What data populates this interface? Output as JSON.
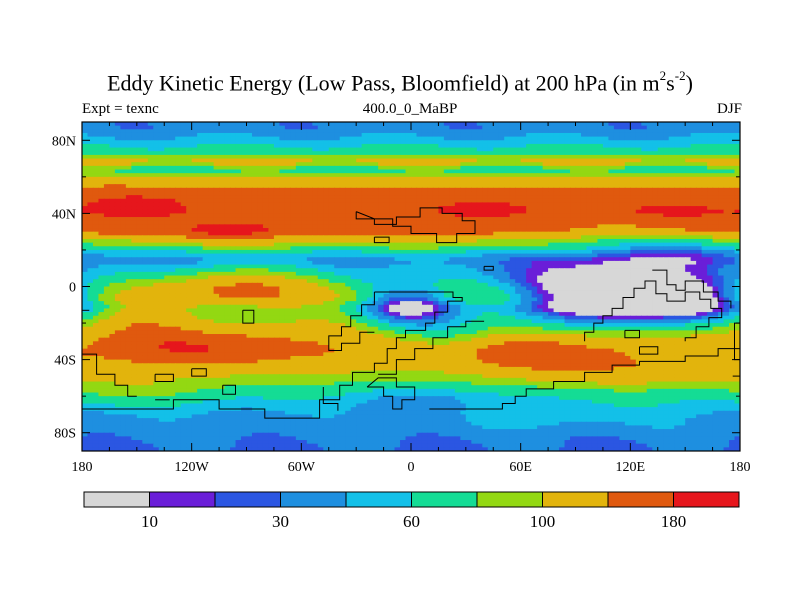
{
  "chart_data": {
    "type": "heatmap",
    "title": {
      "main": "Eddy Kinetic Energy (Low Pass, Bloomfield) at 200 hPa (in m",
      "unit_sq": "2",
      "unit_s": "s",
      "unit_exp": "-2",
      "close": ")"
    },
    "left_label": "Expt = texnc",
    "center_label": "400.0_0_MaBP",
    "right_label": "DJF",
    "x_range": [
      -180,
      180
    ],
    "y_range": [
      -90,
      90
    ],
    "x_ticks": [
      {
        "value": -180,
        "label": "180"
      },
      {
        "value": -120,
        "label": "120W"
      },
      {
        "value": -60,
        "label": "60W"
      },
      {
        "value": 0,
        "label": "0"
      },
      {
        "value": 60,
        "label": "60E"
      },
      {
        "value": 120,
        "label": "120E"
      },
      {
        "value": 180,
        "label": "180"
      }
    ],
    "y_ticks": [
      {
        "value": 80,
        "label": "80N"
      },
      {
        "value": 40,
        "label": "40N"
      },
      {
        "value": 0,
        "label": "0"
      },
      {
        "value": -40,
        "label": "40S"
      },
      {
        "value": -80,
        "label": "80S"
      }
    ],
    "levels": [
      5,
      10,
      20,
      30,
      45,
      60,
      80,
      100,
      140,
      180
    ],
    "colors": [
      "#d7d7d7",
      "#6a1ed8",
      "#2b56e2",
      "#1e8fe0",
      "#13c0e8",
      "#14dc95",
      "#93d812",
      "#e2b40c",
      "#e0590e",
      "#e6161c"
    ],
    "colorbar_labels": [
      {
        "value": 10,
        "label": "10"
      },
      {
        "value": 30,
        "label": "30"
      },
      {
        "value": 60,
        "label": "60"
      },
      {
        "value": 100,
        "label": "100"
      },
      {
        "value": 180,
        "label": "180"
      }
    ],
    "zonal_profile": [
      {
        "lat": 90,
        "value": 35
      },
      {
        "lat": 86,
        "value": 35
      },
      {
        "lat": 80,
        "value": 50
      },
      {
        "lat": 74,
        "value": 68
      },
      {
        "lat": 68,
        "value": 110
      },
      {
        "lat": 64,
        "value": 70
      },
      {
        "lat": 60,
        "value": 100
      },
      {
        "lat": 54,
        "value": 145
      },
      {
        "lat": 48,
        "value": 165
      },
      {
        "lat": 42,
        "value": 172
      },
      {
        "lat": 36,
        "value": 168
      },
      {
        "lat": 30,
        "value": 160
      },
      {
        "lat": 26,
        "value": 112
      },
      {
        "lat": 22,
        "value": 85
      },
      {
        "lat": 18,
        "value": 55
      },
      {
        "lat": 14,
        "value": 40
      },
      {
        "lat": 8,
        "value": 55
      },
      {
        "lat": 4,
        "value": 68
      },
      {
        "lat": 0,
        "value": 88
      },
      {
        "lat": -6,
        "value": 105
      },
      {
        "lat": -12,
        "value": 78
      },
      {
        "lat": -18,
        "value": 78
      },
      {
        "lat": -24,
        "value": 85
      },
      {
        "lat": -30,
        "value": 105
      },
      {
        "lat": -36,
        "value": 120
      },
      {
        "lat": -42,
        "value": 112
      },
      {
        "lat": -48,
        "value": 95
      },
      {
        "lat": -54,
        "value": 78
      },
      {
        "lat": -60,
        "value": 62
      },
      {
        "lat": -66,
        "value": 50
      },
      {
        "lat": -72,
        "value": 40
      },
      {
        "lat": -78,
        "value": 38
      },
      {
        "lat": -84,
        "value": 32
      },
      {
        "lat": -90,
        "value": 28
      }
    ],
    "anomalies": [
      {
        "lon": -150,
        "lat": 44,
        "rlon": 16,
        "rlat": 4,
        "amp": 40
      },
      {
        "lon": -100,
        "lat": 29,
        "rlon": 22,
        "rlat": 4,
        "amp": 34
      },
      {
        "lon": 40,
        "lat": 42,
        "rlon": 20,
        "rlat": 4,
        "amp": 20
      },
      {
        "lon": 140,
        "lat": 40,
        "rlon": 25,
        "rlat": 4,
        "amp": 18
      },
      {
        "lon": 150,
        "lat": 22,
        "rlon": 30,
        "rlat": 8,
        "amp": -32
      },
      {
        "lon": 100,
        "lat": 30,
        "rlon": 30,
        "rlat": 6,
        "amp": -25
      },
      {
        "lon": -95,
        "lat": 0,
        "rlon": 28,
        "rlat": 7,
        "amp": 60
      },
      {
        "lon": -115,
        "lat": -32,
        "rlon": 45,
        "rlat": 8,
        "amp": 65
      },
      {
        "lon": -150,
        "lat": -20,
        "rlon": 20,
        "rlat": 8,
        "amp": 40
      },
      {
        "lon": 0,
        "lat": -10,
        "rlon": 20,
        "rlat": 8,
        "amp": -82
      },
      {
        "lon": 100,
        "lat": -2,
        "rlon": 32,
        "rlat": 10,
        "amp": -95
      },
      {
        "lon": 150,
        "lat": -6,
        "rlon": 25,
        "rlat": 8,
        "amp": -75
      },
      {
        "lon": 60,
        "lat": -36,
        "rlon": 35,
        "rlat": 7,
        "amp": 55
      },
      {
        "lon": 120,
        "lat": -10,
        "rlon": 38,
        "rlat": 7,
        "amp": -40
      },
      {
        "lon": 115,
        "lat": -47,
        "rlon": 40,
        "rlat": 6,
        "amp": 30
      },
      {
        "lon": 25,
        "lat": -32,
        "rlon": 18,
        "rlat": 9,
        "amp": -30
      },
      {
        "lon": -40,
        "lat": -22,
        "rlon": 25,
        "rlat": 8,
        "amp": 15
      },
      {
        "lon": 10,
        "lat": -62,
        "rlon": 30,
        "rlat": 6,
        "amp": -20
      },
      {
        "lon": -150,
        "lat": -57,
        "rlon": 30,
        "rlat": 6,
        "amp": 20
      },
      {
        "lon": 80,
        "lat": -70,
        "rlon": 40,
        "rlat": 5,
        "amp": 15
      }
    ],
    "outlines": [
      [
        [
          -30,
          41
        ],
        [
          -30,
          37
        ],
        [
          -20,
          37
        ],
        [
          -20,
          34
        ],
        [
          -8,
          34
        ],
        [
          -8,
          38
        ],
        [
          5,
          38
        ],
        [
          5,
          43
        ],
        [
          17,
          43
        ],
        [
          17,
          40
        ],
        [
          28,
          40
        ],
        [
          28,
          36
        ],
        [
          35,
          36
        ],
        [
          35,
          29
        ],
        [
          25,
          29
        ],
        [
          25,
          24
        ],
        [
          14,
          24
        ],
        [
          14,
          29
        ],
        [
          0,
          29
        ],
        [
          0,
          33
        ],
        [
          -10,
          33
        ],
        [
          -10,
          37
        ],
        [
          -20,
          37
        ],
        [
          -30,
          41
        ]
      ],
      [
        [
          -20,
          27
        ],
        [
          -12,
          27
        ],
        [
          -12,
          24
        ],
        [
          -20,
          24
        ],
        [
          -20,
          27
        ]
      ],
      [
        [
          40,
          11
        ],
        [
          45,
          11
        ],
        [
          45,
          9
        ],
        [
          40,
          9
        ],
        [
          40,
          11
        ]
      ],
      [
        [
          -20,
          -3
        ],
        [
          0,
          -3
        ],
        [
          14,
          -3
        ],
        [
          23,
          -3
        ],
        [
          23,
          -6
        ],
        [
          28,
          -6
        ],
        [
          28,
          -8
        ],
        [
          20,
          -8
        ],
        [
          20,
          -14
        ],
        [
          13,
          -14
        ],
        [
          13,
          -20
        ],
        [
          8,
          -20
        ],
        [
          8,
          -24
        ],
        [
          -3,
          -24
        ],
        [
          -3,
          -28
        ],
        [
          -8,
          -28
        ],
        [
          -8,
          -34
        ],
        [
          -13,
          -34
        ],
        [
          -13,
          -42
        ],
        [
          -20,
          -42
        ],
        [
          -20,
          -47
        ],
        [
          -32,
          -47
        ],
        [
          -32,
          -54
        ],
        [
          -39,
          -54
        ],
        [
          -39,
          -62
        ],
        [
          -50,
          -62
        ],
        [
          -50,
          -72
        ],
        [
          -80,
          -72
        ],
        [
          -80,
          -67
        ],
        [
          -105,
          -67
        ],
        [
          -105,
          -62
        ],
        [
          -130,
          -62
        ],
        [
          -130,
          -67
        ],
        [
          -180,
          -67
        ]
      ],
      [
        [
          -20,
          -3
        ],
        [
          -20,
          -10
        ],
        [
          -27,
          -10
        ],
        [
          -27,
          -16
        ],
        [
          -33,
          -16
        ],
        [
          -33,
          -22
        ],
        [
          -38,
          -22
        ],
        [
          -38,
          -27
        ],
        [
          -45,
          -27
        ],
        [
          -45,
          -35
        ],
        [
          -38,
          -35
        ],
        [
          -38,
          -31
        ],
        [
          -28,
          -31
        ],
        [
          -28,
          -25
        ],
        [
          -20,
          -25
        ]
      ],
      [
        [
          -180,
          -37
        ],
        [
          -172,
          -37
        ],
        [
          -172,
          -48
        ],
        [
          -162,
          -48
        ],
        [
          -162,
          -54
        ],
        [
          -155,
          -54
        ],
        [
          -155,
          -60
        ],
        [
          -150,
          -60
        ]
      ],
      [
        [
          -140,
          -48
        ],
        [
          -130,
          -48
        ],
        [
          -130,
          -52
        ],
        [
          -140,
          -52
        ],
        [
          -140,
          -48
        ]
      ],
      [
        [
          -120,
          -45
        ],
        [
          -112,
          -45
        ],
        [
          -112,
          -49
        ],
        [
          -120,
          -49
        ],
        [
          -120,
          -45
        ]
      ],
      [
        [
          -103,
          -54
        ],
        [
          -96,
          -54
        ],
        [
          -96,
          -59
        ],
        [
          -103,
          -59
        ],
        [
          -103,
          -54
        ]
      ],
      [
        [
          -140,
          -62
        ],
        [
          -132,
          -62
        ]
      ],
      [
        [
          -18,
          -48
        ],
        [
          -8,
          -48
        ],
        [
          -8,
          -40
        ],
        [
          2,
          -40
        ],
        [
          2,
          -34
        ],
        [
          12,
          -34
        ],
        [
          12,
          -28
        ],
        [
          20,
          -28
        ],
        [
          20,
          -22
        ],
        [
          30,
          -22
        ],
        [
          30,
          -19
        ],
        [
          40,
          -19
        ]
      ],
      [
        [
          -48,
          -55
        ],
        [
          -48,
          -64
        ],
        [
          -40,
          -64
        ],
        [
          -40,
          -68
        ]
      ],
      [
        [
          -24,
          -55
        ],
        [
          -15,
          -55
        ],
        [
          -15,
          -60
        ],
        [
          -10,
          -60
        ],
        [
          -10,
          -67
        ],
        [
          -5,
          -67
        ],
        [
          -5,
          -62
        ],
        [
          2,
          -62
        ],
        [
          2,
          -55
        ],
        [
          -8,
          -55
        ],
        [
          -8,
          -50
        ],
        [
          -18,
          -50
        ],
        [
          -24,
          -55
        ]
      ],
      [
        [
          10,
          -67
        ],
        [
          30,
          -67
        ],
        [
          50,
          -67
        ],
        [
          50,
          -64
        ],
        [
          57,
          -64
        ],
        [
          57,
          -60
        ],
        [
          63,
          -60
        ],
        [
          63,
          -56
        ],
        [
          78,
          -56
        ],
        [
          78,
          -52
        ],
        [
          95,
          -52
        ],
        [
          95,
          -47
        ],
        [
          110,
          -47
        ],
        [
          110,
          -43
        ],
        [
          125,
          -43
        ],
        [
          125,
          -41
        ],
        [
          150,
          -41
        ],
        [
          150,
          -38
        ],
        [
          168,
          -38
        ],
        [
          168,
          -34
        ],
        [
          180,
          -34
        ]
      ],
      [
        [
          180,
          -49
        ],
        [
          176,
          -49
        ]
      ],
      [
        [
          95,
          -30
        ],
        [
          95,
          -25
        ],
        [
          100,
          -25
        ],
        [
          100,
          -20
        ],
        [
          105,
          -20
        ],
        [
          105,
          -16
        ],
        [
          110,
          -16
        ],
        [
          110,
          -12
        ],
        [
          116,
          -12
        ],
        [
          116,
          -6
        ],
        [
          122,
          -6
        ],
        [
          122,
          -1
        ],
        [
          128,
          -1
        ],
        [
          128,
          3
        ],
        [
          134,
          3
        ],
        [
          134,
          -4
        ],
        [
          140,
          -4
        ],
        [
          140,
          -8
        ],
        [
          150,
          -8
        ],
        [
          150,
          -3
        ],
        [
          158,
          -3
        ],
        [
          158,
          -7
        ],
        [
          164,
          -7
        ],
        [
          164,
          -12
        ],
        [
          170,
          -12
        ],
        [
          170,
          -17
        ],
        [
          163,
          -17
        ],
        [
          163,
          -22
        ],
        [
          156,
          -22
        ],
        [
          156,
          -28
        ],
        [
          150,
          -28
        ],
        [
          150,
          -30
        ]
      ],
      [
        [
          117,
          -24
        ],
        [
          125,
          -24
        ],
        [
          125,
          -28
        ],
        [
          117,
          -28
        ],
        [
          117,
          -24
        ]
      ],
      [
        [
          125,
          -33
        ],
        [
          135,
          -33
        ],
        [
          135,
          -37
        ],
        [
          125,
          -37
        ],
        [
          125,
          -33
        ]
      ],
      [
        [
          132,
          9
        ],
        [
          140,
          9
        ],
        [
          140,
          1
        ],
        [
          145,
          1
        ],
        [
          145,
          -2
        ],
        [
          150,
          -2
        ],
        [
          150,
          3
        ],
        [
          160,
          3
        ],
        [
          160,
          -3
        ],
        [
          168,
          -3
        ],
        [
          168,
          -8
        ],
        [
          175,
          -8
        ],
        [
          175,
          -12
        ]
      ],
      [
        [
          -92,
          -13
        ],
        [
          -86,
          -13
        ],
        [
          -86,
          -20
        ],
        [
          -92,
          -20
        ],
        [
          -92,
          -13
        ]
      ],
      [
        [
          180,
          -20
        ],
        [
          177,
          -20
        ],
        [
          177,
          -40
        ],
        [
          180,
          -40
        ]
      ],
      [
        [
          -180,
          -13
        ],
        [
          -176,
          -13
        ]
      ]
    ]
  }
}
